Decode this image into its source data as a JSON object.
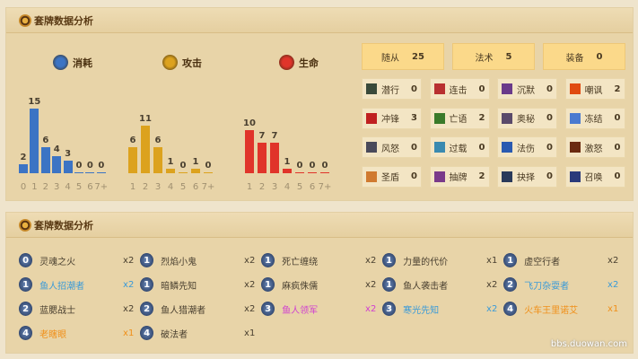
{
  "section1_title": "套牌数据分析",
  "section2_title": "套牌数据分析",
  "chart_data": [
    {
      "type": "bar",
      "title": "消耗",
      "icon": "mana-crystal-icon",
      "color": "#3c74c4",
      "categories": [
        "0",
        "1",
        "2",
        "3",
        "4",
        "5",
        "6",
        "7+"
      ],
      "values": [
        2,
        15,
        6,
        4,
        3,
        0,
        0,
        0
      ]
    },
    {
      "type": "bar",
      "title": "攻击",
      "icon": "attack-sword-icon",
      "color": "#dca21e",
      "categories": [
        "1",
        "2",
        "3",
        "4",
        "5",
        "6",
        "7+"
      ],
      "values": [
        6,
        11,
        6,
        1,
        0,
        1,
        0
      ]
    },
    {
      "type": "bar",
      "title": "生命",
      "icon": "health-drop-icon",
      "color": "#e0342a",
      "categories": [
        "1",
        "2",
        "3",
        "4",
        "5",
        "6",
        "7+"
      ],
      "values": [
        10,
        7,
        7,
        1,
        0,
        0,
        0
      ]
    }
  ],
  "categories": [
    {
      "label": "随从",
      "value": "25"
    },
    {
      "label": "法术",
      "value": "5"
    },
    {
      "label": "装备",
      "value": "0"
    }
  ],
  "tags": [
    {
      "label": "潜行",
      "value": "0",
      "color": "#3a4a3a"
    },
    {
      "label": "连击",
      "value": "0",
      "color": "#b83030"
    },
    {
      "label": "沉默",
      "value": "0",
      "color": "#6a3a8a"
    },
    {
      "label": "嘲讽",
      "value": "2",
      "color": "#e04a10"
    },
    {
      "label": "冲锋",
      "value": "3",
      "color": "#c02020"
    },
    {
      "label": "亡语",
      "value": "2",
      "color": "#3a7a2a"
    },
    {
      "label": "奥秘",
      "value": "0",
      "color": "#5a4a6a"
    },
    {
      "label": "冻结",
      "value": "0",
      "color": "#4a7ad0"
    },
    {
      "label": "风怒",
      "value": "0",
      "color": "#4a4a5a"
    },
    {
      "label": "过载",
      "value": "0",
      "color": "#3a8ab0"
    },
    {
      "label": "法伤",
      "value": "0",
      "color": "#2a5ab0"
    },
    {
      "label": "激怒",
      "value": "0",
      "color": "#6a2a10"
    },
    {
      "label": "圣盾",
      "value": "0",
      "color": "#d07a30"
    },
    {
      "label": "抽牌",
      "value": "2",
      "color": "#7a3a8a"
    },
    {
      "label": "抉择",
      "value": "0",
      "color": "#2a3a5a"
    },
    {
      "label": "召唤",
      "value": "0",
      "color": "#2a3a7a"
    }
  ],
  "cards": [
    {
      "cost": "0",
      "name": "灵魂之火",
      "count": "x2",
      "color": "#4a4030"
    },
    {
      "cost": "1",
      "name": "烈焰小鬼",
      "count": "x2",
      "color": "#4a4030"
    },
    {
      "cost": "1",
      "name": "死亡缠绕",
      "count": "x2",
      "color": "#4a4030"
    },
    {
      "cost": "1",
      "name": "力量的代价",
      "count": "x1",
      "color": "#4a4030"
    },
    {
      "cost": "1",
      "name": "虚空行者",
      "count": "x2",
      "color": "#4a4030"
    },
    {
      "cost": "1",
      "name": "鱼人招潮者",
      "count": "x2",
      "color": "#3a9ad8"
    },
    {
      "cost": "1",
      "name": "暗鳞先知",
      "count": "x2",
      "color": "#4a4030"
    },
    {
      "cost": "1",
      "name": "麻疯侏儒",
      "count": "x2",
      "color": "#4a4030"
    },
    {
      "cost": "1",
      "name": "鱼人袭击者",
      "count": "x2",
      "color": "#4a4030"
    },
    {
      "cost": "2",
      "name": "飞刀杂耍者",
      "count": "x2",
      "color": "#3a9ad8"
    },
    {
      "cost": "2",
      "name": "蓝腮战士",
      "count": "x2",
      "color": "#4a4030"
    },
    {
      "cost": "2",
      "name": "鱼人猎潮者",
      "count": "x2",
      "color": "#4a4030"
    },
    {
      "cost": "3",
      "name": "鱼人领军",
      "count": "x2",
      "color": "#d040d0"
    },
    {
      "cost": "3",
      "name": "寒光先知",
      "count": "x2",
      "color": "#3a9ad8"
    },
    {
      "cost": "4",
      "name": "火车王里诺艾",
      "count": "x1",
      "color": "#f0901a"
    },
    {
      "cost": "4",
      "name": "老瞎眼",
      "count": "x1",
      "color": "#f0901a"
    },
    {
      "cost": "4",
      "name": "破法者",
      "count": "x1",
      "color": "#4a4030"
    }
  ],
  "watermark": "bbs.duowan.com"
}
